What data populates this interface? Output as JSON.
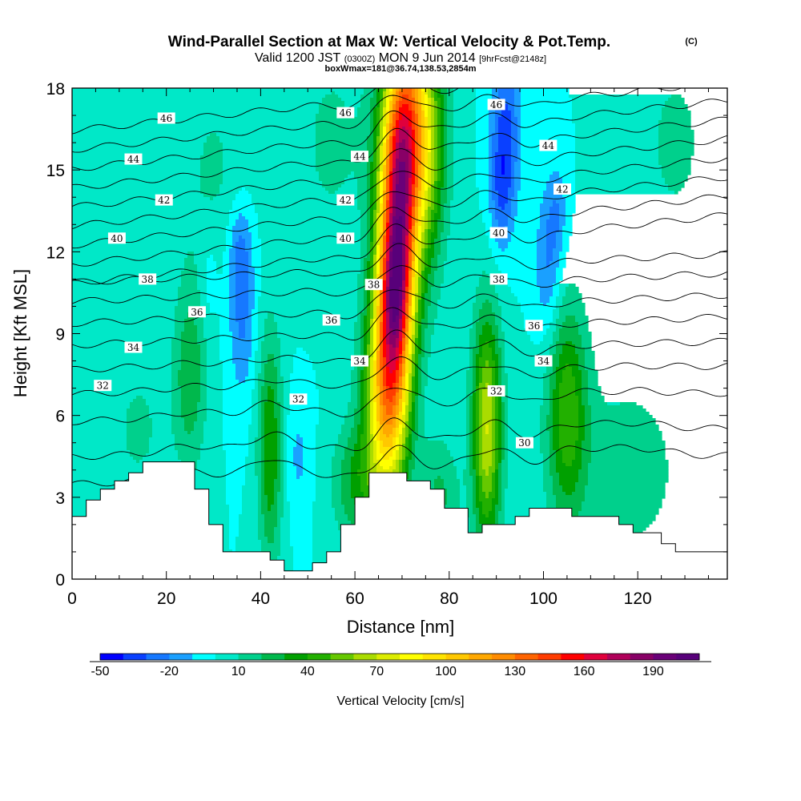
{
  "header": {
    "title": "Wind-Parallel Section at Max W: Vertical Velocity & Pot.Temp.",
    "title_mark": "(C)",
    "valid_a": "Valid 1200 JST",
    "valid_b": "(0300Z)",
    "valid_c": "MON 9 Jun 2014",
    "valid_d": "[9hrFcst@2148z]",
    "subtitle2": "boxWmax=181@36.74,138.53,2854m"
  },
  "chart_data": {
    "type": "heatmap",
    "xlabel": "Distance [nm]",
    "ylabel": "Height [Kft MSL]",
    "xlim": [
      0,
      139
    ],
    "ylim": [
      0,
      18
    ],
    "x_ticks": [
      0,
      20,
      40,
      60,
      80,
      100,
      120
    ],
    "y_ticks": [
      0,
      3,
      6,
      9,
      12,
      15,
      18
    ],
    "background_w_cms": 0,
    "colorbar": {
      "label": "Vertical Velocity [cm/s]",
      "min": -50,
      "max": 210,
      "step": 10,
      "tick_labels": [
        "-50",
        "-20",
        "10",
        "40",
        "70",
        "100",
        "130",
        "160",
        "190"
      ],
      "colors": [
        "#0000ff",
        "#0a40ff",
        "#1678ff",
        "#1aa0ff",
        "#00ffff",
        "#00e8c8",
        "#00d08c",
        "#00b84c",
        "#00a000",
        "#22b000",
        "#66c800",
        "#aadc00",
        "#dcec00",
        "#ffff00",
        "#ffe400",
        "#ffc800",
        "#ffa800",
        "#ff8c00",
        "#ff6400",
        "#ff3c00",
        "#ff0000",
        "#e0003c",
        "#b0005a",
        "#880066",
        "#6a0078",
        "#58007a"
      ]
    },
    "w_features": [
      {
        "x": 69,
        "y": 12,
        "sx": 3.0,
        "sy": 5.0,
        "amp": 180,
        "tilt": 0.22
      },
      {
        "x": 68.5,
        "y": 10.5,
        "sx": 1.8,
        "sy": 1.5,
        "amp": 30,
        "tilt": 0.0
      },
      {
        "x": 66,
        "y": 6.5,
        "sx": 3.5,
        "sy": 2.5,
        "amp": 45,
        "tilt": 0.0
      },
      {
        "x": 72,
        "y": 16.5,
        "sx": 4.5,
        "sy": 2.5,
        "amp": 55,
        "tilt": 0.0
      },
      {
        "x": 76,
        "y": 15,
        "sx": 2.5,
        "sy": 3.5,
        "amp": 25,
        "tilt": 0.0
      },
      {
        "x": 88,
        "y": 5.5,
        "sx": 2.2,
        "sy": 3.0,
        "amp": 70,
        "tilt": 0.0
      },
      {
        "x": 105,
        "y": 6.2,
        "sx": 3.0,
        "sy": 2.8,
        "amp": 45,
        "tilt": 0.0
      },
      {
        "x": 42,
        "y": 4.8,
        "sx": 1.8,
        "sy": 3.0,
        "amp": 40,
        "tilt": 0.0
      },
      {
        "x": 25,
        "y": 7.5,
        "sx": 2.5,
        "sy": 2.5,
        "amp": 28,
        "tilt": 0.0
      },
      {
        "x": 60,
        "y": 3.5,
        "sx": 3.5,
        "sy": 1.5,
        "amp": 28,
        "tilt": 0.0
      },
      {
        "x": 78,
        "y": 3.0,
        "sx": 3.0,
        "sy": 1.6,
        "amp": 22,
        "tilt": 0.0
      },
      {
        "x": 14,
        "y": 5.5,
        "sx": 4.5,
        "sy": 2.0,
        "amp": 12,
        "tilt": 0.0
      },
      {
        "x": 55,
        "y": 16,
        "sx": 6.0,
        "sy": 3.0,
        "amp": 12,
        "tilt": 0.0
      },
      {
        "x": 118,
        "y": 4.0,
        "sx": 10.0,
        "sy": 3.0,
        "amp": 14,
        "tilt": 0.0
      },
      {
        "x": 128,
        "y": 16,
        "sx": 6.0,
        "sy": 3.0,
        "amp": 12,
        "tilt": 0.0
      },
      {
        "x": 30,
        "y": 15,
        "sx": 6.0,
        "sy": 3.0,
        "amp": 11,
        "tilt": 0.0
      },
      {
        "x": 92,
        "y": 16.5,
        "sx": 2.2,
        "sy": 2.0,
        "amp": -32,
        "tilt": 0.0
      },
      {
        "x": 91,
        "y": 14.0,
        "sx": 1.8,
        "sy": 1.5,
        "amp": -22,
        "tilt": 0.0
      },
      {
        "x": 36,
        "y": 10,
        "sx": 2.0,
        "sy": 2.2,
        "amp": -24,
        "tilt": 0.0
      },
      {
        "x": 35.5,
        "y": 12.2,
        "sx": 1.8,
        "sy": 1.2,
        "amp": -14,
        "tilt": 0.0
      },
      {
        "x": 101,
        "y": 11.5,
        "sx": 2.0,
        "sy": 2.0,
        "amp": -22,
        "tilt": 0.0
      },
      {
        "x": 103,
        "y": 13.5,
        "sx": 1.5,
        "sy": 1.2,
        "amp": -14,
        "tilt": 0.0
      },
      {
        "x": 48,
        "y": 4.5,
        "sx": 1.8,
        "sy": 1.5,
        "amp": -12,
        "tilt": 0.0
      },
      {
        "x": 29,
        "y": 11,
        "sx": 1.5,
        "sy": 1.2,
        "amp": -10,
        "tilt": 0.0
      }
    ],
    "theta_contours": [
      {
        "value": 30,
        "base": 4.0
      },
      {
        "value": 31,
        "base": 5.0
      },
      {
        "value": 32,
        "base": 6.3
      },
      {
        "value": 33,
        "base": 7.3
      },
      {
        "value": 34,
        "base": 8.2
      },
      {
        "value": 35,
        "base": 9.1
      },
      {
        "value": 36,
        "base": 9.9
      },
      {
        "value": 37,
        "base": 10.7
      },
      {
        "value": 38,
        "base": 11.4
      },
      {
        "value": 39,
        "base": 12.1
      },
      {
        "value": 40,
        "base": 12.8
      },
      {
        "value": 41,
        "base": 13.5
      },
      {
        "value": 42,
        "base": 14.2
      },
      {
        "value": 43,
        "base": 14.9
      },
      {
        "value": 44,
        "base": 15.6
      },
      {
        "value": 45,
        "base": 16.3
      },
      {
        "value": 46,
        "base": 17.0
      },
      {
        "value": 47,
        "base": 17.7
      }
    ],
    "theta_labels": [
      {
        "text": "46",
        "x": 20,
        "y": 16.9
      },
      {
        "text": "46",
        "x": 58,
        "y": 17.1
      },
      {
        "text": "46",
        "x": 90,
        "y": 17.4
      },
      {
        "text": "44",
        "x": 13,
        "y": 15.4
      },
      {
        "text": "44",
        "x": 61,
        "y": 15.5
      },
      {
        "text": "44",
        "x": 101,
        "y": 15.9
      },
      {
        "text": "42",
        "x": 19.5,
        "y": 13.9
      },
      {
        "text": "42",
        "x": 58,
        "y": 13.9
      },
      {
        "text": "42",
        "x": 104,
        "y": 14.3
      },
      {
        "text": "40",
        "x": 9.5,
        "y": 12.5
      },
      {
        "text": "40",
        "x": 58,
        "y": 12.5
      },
      {
        "text": "40",
        "x": 90.5,
        "y": 12.7
      },
      {
        "text": "38",
        "x": 16,
        "y": 11.0
      },
      {
        "text": "38",
        "x": 64,
        "y": 10.8
      },
      {
        "text": "38",
        "x": 90.5,
        "y": 11.0
      },
      {
        "text": "36",
        "x": 26.5,
        "y": 9.8
      },
      {
        "text": "36",
        "x": 55,
        "y": 9.5
      },
      {
        "text": "36",
        "x": 98,
        "y": 9.3
      },
      {
        "text": "34",
        "x": 13,
        "y": 8.5
      },
      {
        "text": "34",
        "x": 61,
        "y": 8.0
      },
      {
        "text": "34",
        "x": 100,
        "y": 8.0
      },
      {
        "text": "32",
        "x": 6.5,
        "y": 7.1
      },
      {
        "text": "32",
        "x": 48,
        "y": 6.6
      },
      {
        "text": "32",
        "x": 90,
        "y": 6.9
      },
      {
        "text": "30",
        "x": 96,
        "y": 5.0
      }
    ],
    "terrain": [
      [
        0,
        2.3
      ],
      [
        3,
        2.3
      ],
      [
        3,
        2.9
      ],
      [
        6,
        2.9
      ],
      [
        6,
        3.3
      ],
      [
        9,
        3.3
      ],
      [
        9,
        3.6
      ],
      [
        12,
        3.6
      ],
      [
        12,
        3.9
      ],
      [
        15,
        3.9
      ],
      [
        15,
        4.3
      ],
      [
        26,
        4.3
      ],
      [
        26,
        3.3
      ],
      [
        29,
        3.3
      ],
      [
        29,
        2.0
      ],
      [
        32,
        2.0
      ],
      [
        32,
        1.0
      ],
      [
        42,
        1.0
      ],
      [
        42,
        0.7
      ],
      [
        45,
        0.7
      ],
      [
        45,
        0.3
      ],
      [
        51,
        0.3
      ],
      [
        51,
        0.6
      ],
      [
        54,
        0.6
      ],
      [
        54,
        1.0
      ],
      [
        57,
        1.0
      ],
      [
        57,
        2.0
      ],
      [
        60,
        2.0
      ],
      [
        60,
        3.0
      ],
      [
        63,
        3.0
      ],
      [
        63,
        3.9
      ],
      [
        71,
        3.9
      ],
      [
        71,
        3.6
      ],
      [
        76,
        3.6
      ],
      [
        76,
        3.3
      ],
      [
        79,
        3.3
      ],
      [
        79,
        2.6
      ],
      [
        84,
        2.6
      ],
      [
        84,
        1.7
      ],
      [
        87,
        1.7
      ],
      [
        87,
        2.0
      ],
      [
        94,
        2.0
      ],
      [
        94,
        2.3
      ],
      [
        97,
        2.3
      ],
      [
        97,
        2.6
      ],
      [
        106,
        2.6
      ],
      [
        106,
        2.3
      ],
      [
        116,
        2.3
      ],
      [
        116,
        2.0
      ],
      [
        119,
        2.0
      ],
      [
        119,
        1.7
      ],
      [
        125,
        1.7
      ],
      [
        125,
        1.3
      ],
      [
        128,
        1.3
      ],
      [
        128,
        1.0
      ],
      [
        139,
        1.0
      ]
    ]
  }
}
